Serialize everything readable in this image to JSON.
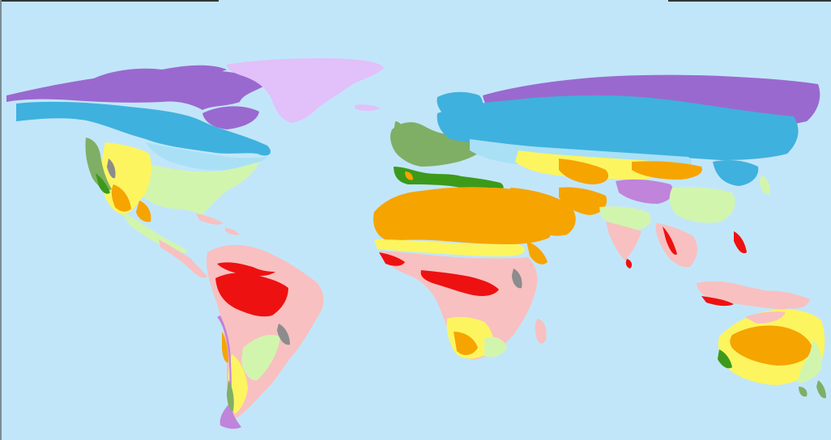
{
  "map": {
    "ocean_color": "#c2e6f9",
    "zone_colors": {
      "tropical_rainforest": "#ee1111",
      "tropical_savanna": "#f8c0c0",
      "hot_desert": "#f6a400",
      "steppe": "#fcf560",
      "mediterranean": "#3c9a1a",
      "humid_subtropical": "#d2f5ae",
      "marine_west_coast": "#7faf65",
      "humid_continental": "#3fb1de",
      "warm_continental": "#a9e0f5",
      "highland": "#8c8c8c",
      "highland_cold": "#c084da",
      "subarctic": "#9a69cf",
      "ice_cap": "#e2c0fa"
    }
  }
}
